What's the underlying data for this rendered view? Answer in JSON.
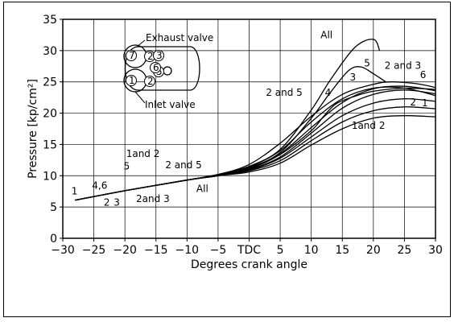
{
  "chart_data": {
    "type": "line",
    "xlabel": "Degrees crank angle",
    "ylabel": "Pressure [kp/cm²]",
    "xlim": [
      -30,
      30
    ],
    "ylim": [
      0,
      35
    ],
    "x_ticks": [
      "−30",
      "−25",
      "−20",
      "−15",
      "−10",
      "−5",
      "TDC",
      "5",
      "10",
      "15",
      "20",
      "25",
      "30"
    ],
    "y_ticks": [
      "0",
      "5",
      "10",
      "15",
      "20",
      "25",
      "30",
      "35"
    ],
    "grid": true,
    "series": [
      {
        "name": "All",
        "points": [
          [
            -28,
            6.1
          ],
          [
            -20,
            7.6
          ],
          [
            -10,
            9.3
          ],
          [
            -5,
            10.2
          ],
          [
            0,
            11.5
          ],
          [
            5,
            14.2
          ],
          [
            10,
            20.5
          ],
          [
            13,
            25.2
          ],
          [
            17,
            30.5
          ],
          [
            20,
            31.8
          ],
          [
            21,
            30
          ]
        ]
      },
      {
        "name": "5",
        "points": [
          [
            -28,
            6.1
          ],
          [
            -20,
            7.6
          ],
          [
            -10,
            9.3
          ],
          [
            -5,
            10.2
          ],
          [
            0,
            11.3
          ],
          [
            5,
            13.7
          ],
          [
            10,
            19.2
          ],
          [
            13,
            23.2
          ],
          [
            16,
            26.8
          ],
          [
            18,
            27.4
          ],
          [
            20,
            26.3
          ],
          [
            22,
            25
          ]
        ]
      },
      {
        "name": "2 and 5",
        "points": [
          [
            -28,
            6.1
          ],
          [
            -20,
            7.6
          ],
          [
            -10,
            9.3
          ],
          [
            -5,
            10.1
          ],
          [
            0,
            11.1
          ],
          [
            5,
            13.4
          ],
          [
            10,
            17.2
          ],
          [
            12,
            19.5
          ],
          [
            14,
            21.5
          ],
          [
            17,
            22.7
          ],
          [
            20,
            23.5
          ],
          [
            25,
            24
          ],
          [
            30,
            23.8
          ]
        ]
      },
      {
        "name": "2 and 3",
        "points": [
          [
            -28,
            6.1
          ],
          [
            -20,
            7.6
          ],
          [
            -10,
            9.3
          ],
          [
            -5,
            10.2
          ],
          [
            0,
            11.8
          ],
          [
            5,
            15.2
          ],
          [
            10,
            19.5
          ],
          [
            15,
            23
          ],
          [
            20,
            24.6
          ],
          [
            23,
            25
          ],
          [
            27,
            24.7
          ],
          [
            30,
            24.1
          ]
        ]
      },
      {
        "name": "3",
        "points": [
          [
            -28,
            6.1
          ],
          [
            -20,
            7.6
          ],
          [
            -10,
            9.3
          ],
          [
            -5,
            10.1
          ],
          [
            0,
            11.2
          ],
          [
            5,
            13.5
          ],
          [
            10,
            17.7
          ],
          [
            15,
            21.7
          ],
          [
            20,
            23.9
          ],
          [
            25,
            24.3
          ],
          [
            30,
            23.6
          ]
        ]
      },
      {
        "name": "4",
        "points": [
          [
            -28,
            6.1
          ],
          [
            -20,
            7.6
          ],
          [
            -10,
            9.3
          ],
          [
            -5,
            10.1
          ],
          [
            0,
            11.4
          ],
          [
            5,
            14
          ],
          [
            10,
            18.6
          ],
          [
            15,
            22.3
          ],
          [
            20,
            24
          ],
          [
            25,
            24
          ],
          [
            30,
            22.8
          ]
        ]
      },
      {
        "name": "6",
        "points": [
          [
            -28,
            6.1
          ],
          [
            -20,
            7.6
          ],
          [
            -10,
            9.3
          ],
          [
            -5,
            10
          ],
          [
            0,
            11
          ],
          [
            5,
            13
          ],
          [
            10,
            16.8
          ],
          [
            15,
            20.8
          ],
          [
            20,
            23
          ],
          [
            25,
            23.7
          ],
          [
            30,
            23.1
          ]
        ]
      },
      {
        "name": "2",
        "points": [
          [
            -28,
            6.1
          ],
          [
            -20,
            7.6
          ],
          [
            -10,
            9.3
          ],
          [
            -5,
            10
          ],
          [
            0,
            10.9
          ],
          [
            5,
            12.8
          ],
          [
            10,
            16.2
          ],
          [
            15,
            19.6
          ],
          [
            20,
            21.6
          ],
          [
            25,
            22.3
          ],
          [
            30,
            21.9
          ]
        ]
      },
      {
        "name": "1",
        "points": [
          [
            -28,
            6.1
          ],
          [
            -20,
            7.6
          ],
          [
            -10,
            9.3
          ],
          [
            -5,
            10
          ],
          [
            0,
            10.8
          ],
          [
            5,
            12.4
          ],
          [
            10,
            15.6
          ],
          [
            15,
            18.6
          ],
          [
            20,
            20.4
          ],
          [
            25,
            21
          ],
          [
            30,
            20.7
          ]
        ]
      },
      {
        "name": "1 and 2",
        "points": [
          [
            -28,
            6.1
          ],
          [
            -20,
            7.6
          ],
          [
            -10,
            9.3
          ],
          [
            -5,
            10
          ],
          [
            0,
            10.6
          ],
          [
            5,
            12
          ],
          [
            10,
            14.9
          ],
          [
            15,
            17.5
          ],
          [
            20,
            19.2
          ],
          [
            25,
            19.6
          ],
          [
            30,
            19.4
          ]
        ]
      }
    ],
    "annotations": [
      {
        "text": "All",
        "x": 11.5,
        "y": 32
      },
      {
        "text": "5",
        "x": 18.5,
        "y": 27.5
      },
      {
        "text": "2 and 3",
        "x": 21.8,
        "y": 27.1
      },
      {
        "text": "3",
        "x": 16.2,
        "y": 25.2
      },
      {
        "text": "6",
        "x": 27.5,
        "y": 25.6
      },
      {
        "text": "4",
        "x": 12.2,
        "y": 22.8
      },
      {
        "text": "2 and 5",
        "x": 2.7,
        "y": 22.8
      },
      {
        "text": "2",
        "x": 25.9,
        "y": 21.2
      },
      {
        "text": "1",
        "x": 27.8,
        "y": 21.1
      },
      {
        "text": "1and 2",
        "x": 16.5,
        "y": 17.5
      },
      {
        "text": "1and 2",
        "x": -19.8,
        "y": 13.0
      },
      {
        "text": "2 and 5",
        "x": -13.5,
        "y": 11.2
      },
      {
        "text": "5",
        "x": -20.2,
        "y": 11.0
      },
      {
        "text": "4,6",
        "x": -25.3,
        "y": 7.9
      },
      {
        "text": "1",
        "x": -28.6,
        "y": 7.0
      },
      {
        "text": "2",
        "x": -23.4,
        "y": 5.2
      },
      {
        "text": "3",
        "x": -21.8,
        "y": 5.2
      },
      {
        "text": "2and 3",
        "x": -18.2,
        "y": 5.8
      },
      {
        "text": "All",
        "x": -8.5,
        "y": 7.4
      }
    ],
    "inset": {
      "exhaust_label": "Exhaust valve",
      "inlet_label": "Inlet valve",
      "valve_numbers": [
        "7",
        "2",
        "1",
        "2",
        "3",
        "5",
        "6"
      ]
    }
  }
}
